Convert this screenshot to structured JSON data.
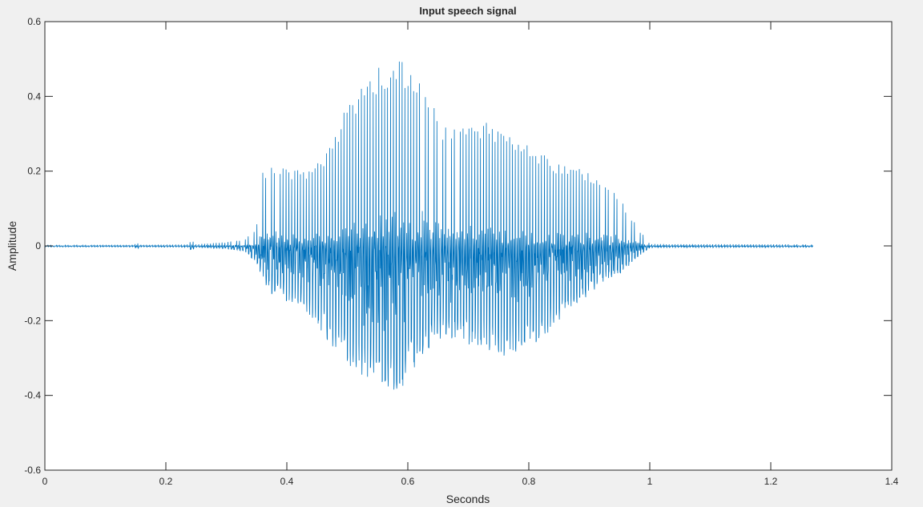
{
  "chart_data": {
    "type": "line",
    "title": "Input speech signal",
    "xlabel": "Seconds",
    "ylabel": "Amplitude",
    "xlim": [
      0,
      1.4
    ],
    "ylim": [
      -0.6,
      0.6
    ],
    "xticks": [
      0,
      0.2,
      0.4,
      0.6,
      0.8,
      1.0,
      1.2,
      1.4
    ],
    "xtick_labels": [
      "0",
      "0.2",
      "0.4",
      "0.6",
      "0.8",
      "1",
      "1.2",
      "1.4"
    ],
    "yticks": [
      -0.6,
      -0.4,
      -0.2,
      0,
      0.2,
      0.4,
      0.6
    ],
    "ytick_labels": [
      "-0.6",
      "-0.4",
      "-0.2",
      "0",
      "0.2",
      "0.4",
      "0.6"
    ],
    "grid": false,
    "line_color": "#0072bd",
    "series": [
      {
        "x_range": [
          0,
          1.27
        ],
        "envelope_upper": [
          [
            0,
            0.003
          ],
          [
            0.148,
            0.003
          ],
          [
            0.152,
            0.01
          ],
          [
            0.156,
            0.003
          ],
          [
            0.238,
            0.004
          ],
          [
            0.243,
            0.02
          ],
          [
            0.248,
            0.004
          ],
          [
            0.3,
            0.01
          ],
          [
            0.33,
            0.018
          ],
          [
            0.35,
            0.05
          ],
          [
            0.36,
            0.21
          ],
          [
            0.38,
            0.21
          ],
          [
            0.4,
            0.21
          ],
          [
            0.43,
            0.2
          ],
          [
            0.47,
            0.26
          ],
          [
            0.5,
            0.38
          ],
          [
            0.54,
            0.47
          ],
          [
            0.57,
            0.5
          ],
          [
            0.6,
            0.49
          ],
          [
            0.63,
            0.44
          ],
          [
            0.65,
            0.35
          ],
          [
            0.67,
            0.31
          ],
          [
            0.7,
            0.32
          ],
          [
            0.73,
            0.33
          ],
          [
            0.76,
            0.31
          ],
          [
            0.8,
            0.27
          ],
          [
            0.84,
            0.23
          ],
          [
            0.88,
            0.21
          ],
          [
            0.92,
            0.18
          ],
          [
            0.95,
            0.13
          ],
          [
            0.98,
            0.05
          ],
          [
            1.0,
            0.005
          ],
          [
            1.27,
            0.004
          ]
        ],
        "envelope_lower": [
          [
            0,
            -0.003
          ],
          [
            0.148,
            -0.003
          ],
          [
            0.152,
            -0.01
          ],
          [
            0.156,
            -0.003
          ],
          [
            0.238,
            -0.004
          ],
          [
            0.243,
            -0.015
          ],
          [
            0.248,
            -0.004
          ],
          [
            0.3,
            -0.008
          ],
          [
            0.33,
            -0.015
          ],
          [
            0.35,
            -0.05
          ],
          [
            0.37,
            -0.13
          ],
          [
            0.4,
            -0.15
          ],
          [
            0.43,
            -0.17
          ],
          [
            0.47,
            -0.26
          ],
          [
            0.52,
            -0.35
          ],
          [
            0.57,
            -0.4
          ],
          [
            0.6,
            -0.37
          ],
          [
            0.62,
            -0.3
          ],
          [
            0.65,
            -0.25
          ],
          [
            0.68,
            -0.25
          ],
          [
            0.7,
            -0.27
          ],
          [
            0.73,
            -0.28
          ],
          [
            0.76,
            -0.3
          ],
          [
            0.8,
            -0.28
          ],
          [
            0.84,
            -0.22
          ],
          [
            0.88,
            -0.16
          ],
          [
            0.92,
            -0.1
          ],
          [
            0.95,
            -0.08
          ],
          [
            0.98,
            -0.03
          ],
          [
            1.0,
            -0.005
          ],
          [
            1.27,
            -0.004
          ]
        ]
      }
    ]
  }
}
